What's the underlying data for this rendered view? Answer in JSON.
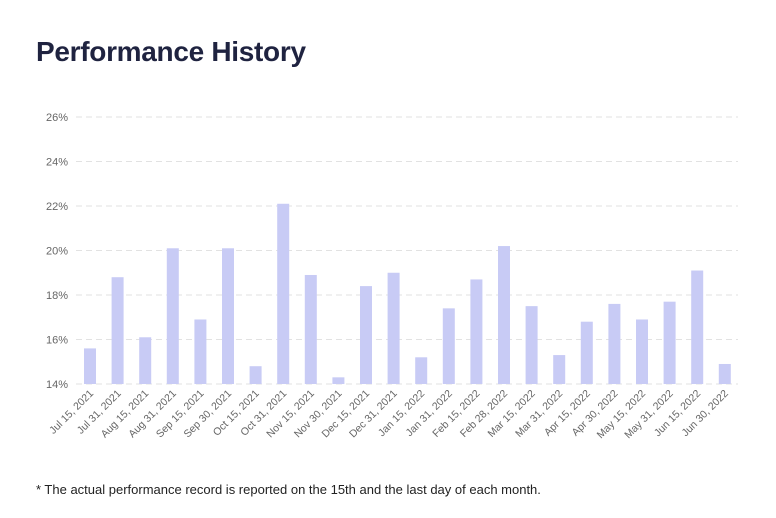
{
  "page": {
    "title": "Performance History",
    "footnote": "* The actual performance record is reported on the 15th and the last day of each month."
  },
  "colors": {
    "bar": "#c8cbf5",
    "grid": "#e2e2e2",
    "tick_label": "#666666",
    "title": "#1f2340"
  },
  "chart_data": {
    "type": "bar",
    "title": "Performance History",
    "xlabel": "",
    "ylabel": "",
    "ylim": [
      14,
      26
    ],
    "yticks": [
      14,
      16,
      18,
      20,
      22,
      24,
      26
    ],
    "ytick_labels": [
      "14%",
      "16%",
      "18%",
      "20%",
      "22%",
      "24%",
      "26%"
    ],
    "grid": true,
    "categories": [
      "Jul 15, 2021",
      "Jul 31, 2021",
      "Aug 15, 2021",
      "Aug 31, 2021",
      "Sep 15, 2021",
      "Sep 30, 2021",
      "Oct 15, 2021",
      "Oct 31, 2021",
      "Nov 15, 2021",
      "Nov 30, 2021",
      "Dec 15, 2021",
      "Dec 31, 2021",
      "Jan 15, 2022",
      "Jan 31, 2022",
      "Feb 15, 2022",
      "Feb 28, 2022",
      "Mar 15, 2022",
      "Mar 31, 2022",
      "Apr 15, 2022",
      "Apr 30, 2022",
      "May 15, 2022",
      "May 31, 2022",
      "Jun 15, 2022",
      "Jun 30, 2022"
    ],
    "values": [
      15.6,
      18.8,
      16.1,
      20.1,
      16.9,
      20.1,
      14.8,
      22.1,
      18.9,
      14.3,
      18.4,
      19.0,
      15.2,
      17.4,
      18.7,
      20.2,
      17.5,
      15.3,
      16.8,
      17.6,
      16.9,
      17.7,
      19.1,
      14.9
    ]
  }
}
